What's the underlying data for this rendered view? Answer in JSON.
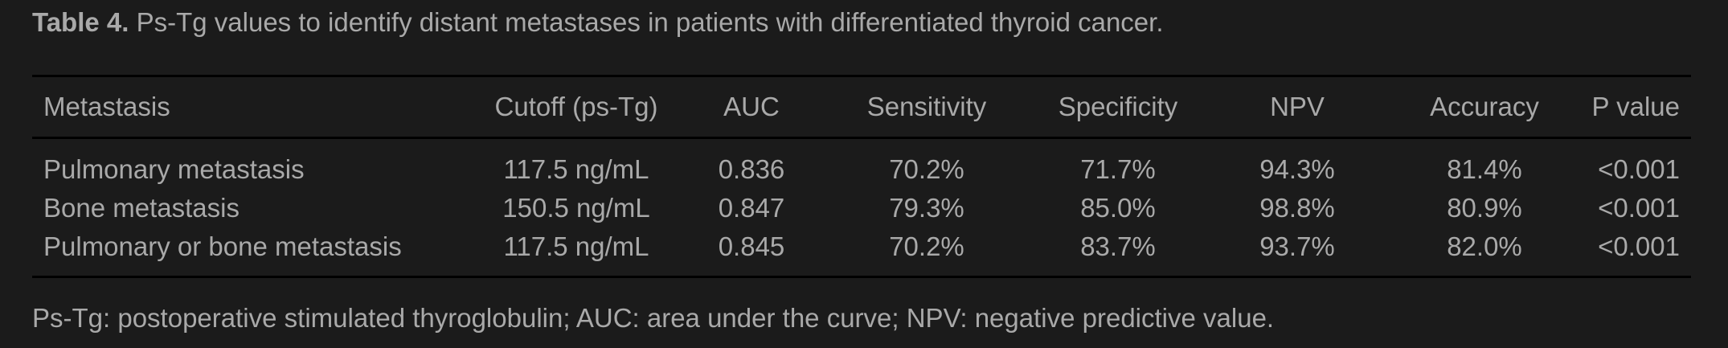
{
  "caption": {
    "label": "Table 4.",
    "text": " Ps-Tg values to identify distant metastases in patients with differentiated thyroid cancer."
  },
  "table": {
    "headers": [
      "Metastasis",
      "Cutoff (ps-Tg)",
      "AUC",
      "Sensitivity",
      "Specificity",
      "NPV",
      "Accuracy",
      "P value"
    ],
    "rows": [
      [
        "Pulmonary metastasis",
        "117.5 ng/mL",
        "0.836",
        "70.2%",
        "71.7%",
        "94.3%",
        "81.4%",
        "<0.001"
      ],
      [
        "Bone metastasis",
        "150.5 ng/mL",
        "0.847",
        "79.3%",
        "85.0%",
        "98.8%",
        "80.9%",
        "<0.001"
      ],
      [
        "Pulmonary or bone metastasis",
        "117.5 ng/mL",
        "0.845",
        "70.2%",
        "83.7%",
        "93.7%",
        "82.0%",
        "<0.001"
      ]
    ]
  },
  "footnote": "Ps-Tg: postoperative stimulated thyroglobulin; AUC: area under the curve; NPV: negative predictive value."
}
